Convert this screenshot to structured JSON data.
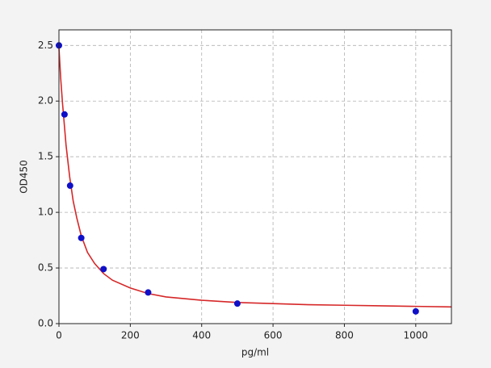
{
  "chart_data": {
    "type": "scatter",
    "xlabel": "pg/ml",
    "ylabel": "OD450",
    "xlim": [
      0,
      1100
    ],
    "ylim": [
      0,
      2.64
    ],
    "xticks": [
      0,
      200,
      400,
      600,
      800,
      1000
    ],
    "yticks": [
      {
        "value": 0,
        "label": "0.0"
      },
      {
        "value": 0.5,
        "label": "0.5"
      },
      {
        "value": 1,
        "label": "1.0"
      },
      {
        "value": 1.5,
        "label": "1.5"
      },
      {
        "value": 2,
        "label": "2.0"
      },
      {
        "value": 2.5,
        "label": "2.5"
      }
    ],
    "grid": true,
    "series": [
      {
        "type": "line",
        "color": "#d62728",
        "x": [
          0,
          5,
          10,
          20,
          30,
          40,
          50,
          62.5,
          80,
          100,
          125,
          150,
          200,
          250,
          300,
          400,
          500,
          600,
          700,
          800,
          900,
          1000,
          1100
        ],
        "values": [
          2.48,
          2.2,
          1.98,
          1.6,
          1.32,
          1.1,
          0.95,
          0.79,
          0.64,
          0.54,
          0.45,
          0.39,
          0.32,
          0.27,
          0.24,
          0.21,
          0.19,
          0.18,
          0.17,
          0.165,
          0.16,
          0.155,
          0.15
        ]
      },
      {
        "type": "scatter",
        "color": "#1010c8",
        "x": [
          0,
          15.6,
          31.25,
          62.5,
          125,
          250,
          500,
          1000
        ],
        "values": [
          2.5,
          1.88,
          1.24,
          0.77,
          0.49,
          0.28,
          0.18,
          0.11
        ]
      }
    ]
  }
}
